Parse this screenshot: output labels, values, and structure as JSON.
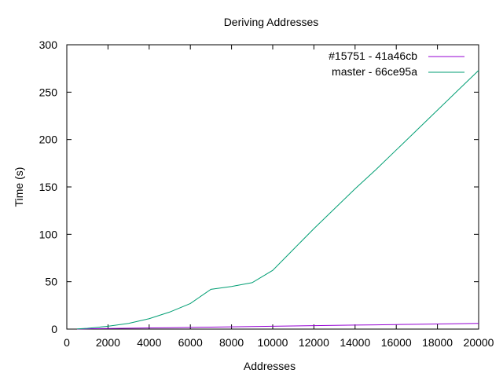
{
  "chart_data": {
    "type": "line",
    "title": "Deriving Addresses",
    "xlabel": "Addresses",
    "ylabel": "Time (s)",
    "xlim": [
      0,
      20000
    ],
    "ylim": [
      0,
      300
    ],
    "x_ticks": [
      "0",
      "2000",
      "4000",
      "6000",
      "8000",
      "10000",
      "12000",
      "14000",
      "16000",
      "18000",
      "20000"
    ],
    "y_ticks": [
      "0",
      "50",
      "100",
      "150",
      "200",
      "250",
      "300"
    ],
    "grid": false,
    "legend_position": "top-right",
    "series": [
      {
        "name": "#15751 - 41a46cb",
        "color": "#9400d3",
        "x": [
          500,
          1000,
          2000,
          3000,
          4000,
          5000,
          6000,
          7000,
          8000,
          9000,
          10000,
          11000,
          12000,
          13000,
          14000,
          15000,
          16000,
          17000,
          18000,
          19000,
          20000
        ],
        "y": [
          0.1,
          0.3,
          0.6,
          0.9,
          1.2,
          1.5,
          1.8,
          2.1,
          2.4,
          2.7,
          3.0,
          3.3,
          3.6,
          3.9,
          4.2,
          4.5,
          4.8,
          5.1,
          5.4,
          5.7,
          6.0
        ]
      },
      {
        "name": "master - 66ce95a",
        "color": "#009e73",
        "x": [
          500,
          1000,
          2000,
          3000,
          4000,
          5000,
          6000,
          7000,
          8000,
          9000,
          10000,
          11000,
          12000,
          13000,
          14000,
          15000,
          16000,
          17000,
          18000,
          19000,
          20000
        ],
        "y": [
          0.2,
          0.8,
          3,
          6,
          11,
          18,
          27,
          42,
          45,
          49,
          62,
          84,
          106,
          127,
          148,
          168,
          189,
          210,
          231,
          252,
          273
        ]
      }
    ]
  }
}
